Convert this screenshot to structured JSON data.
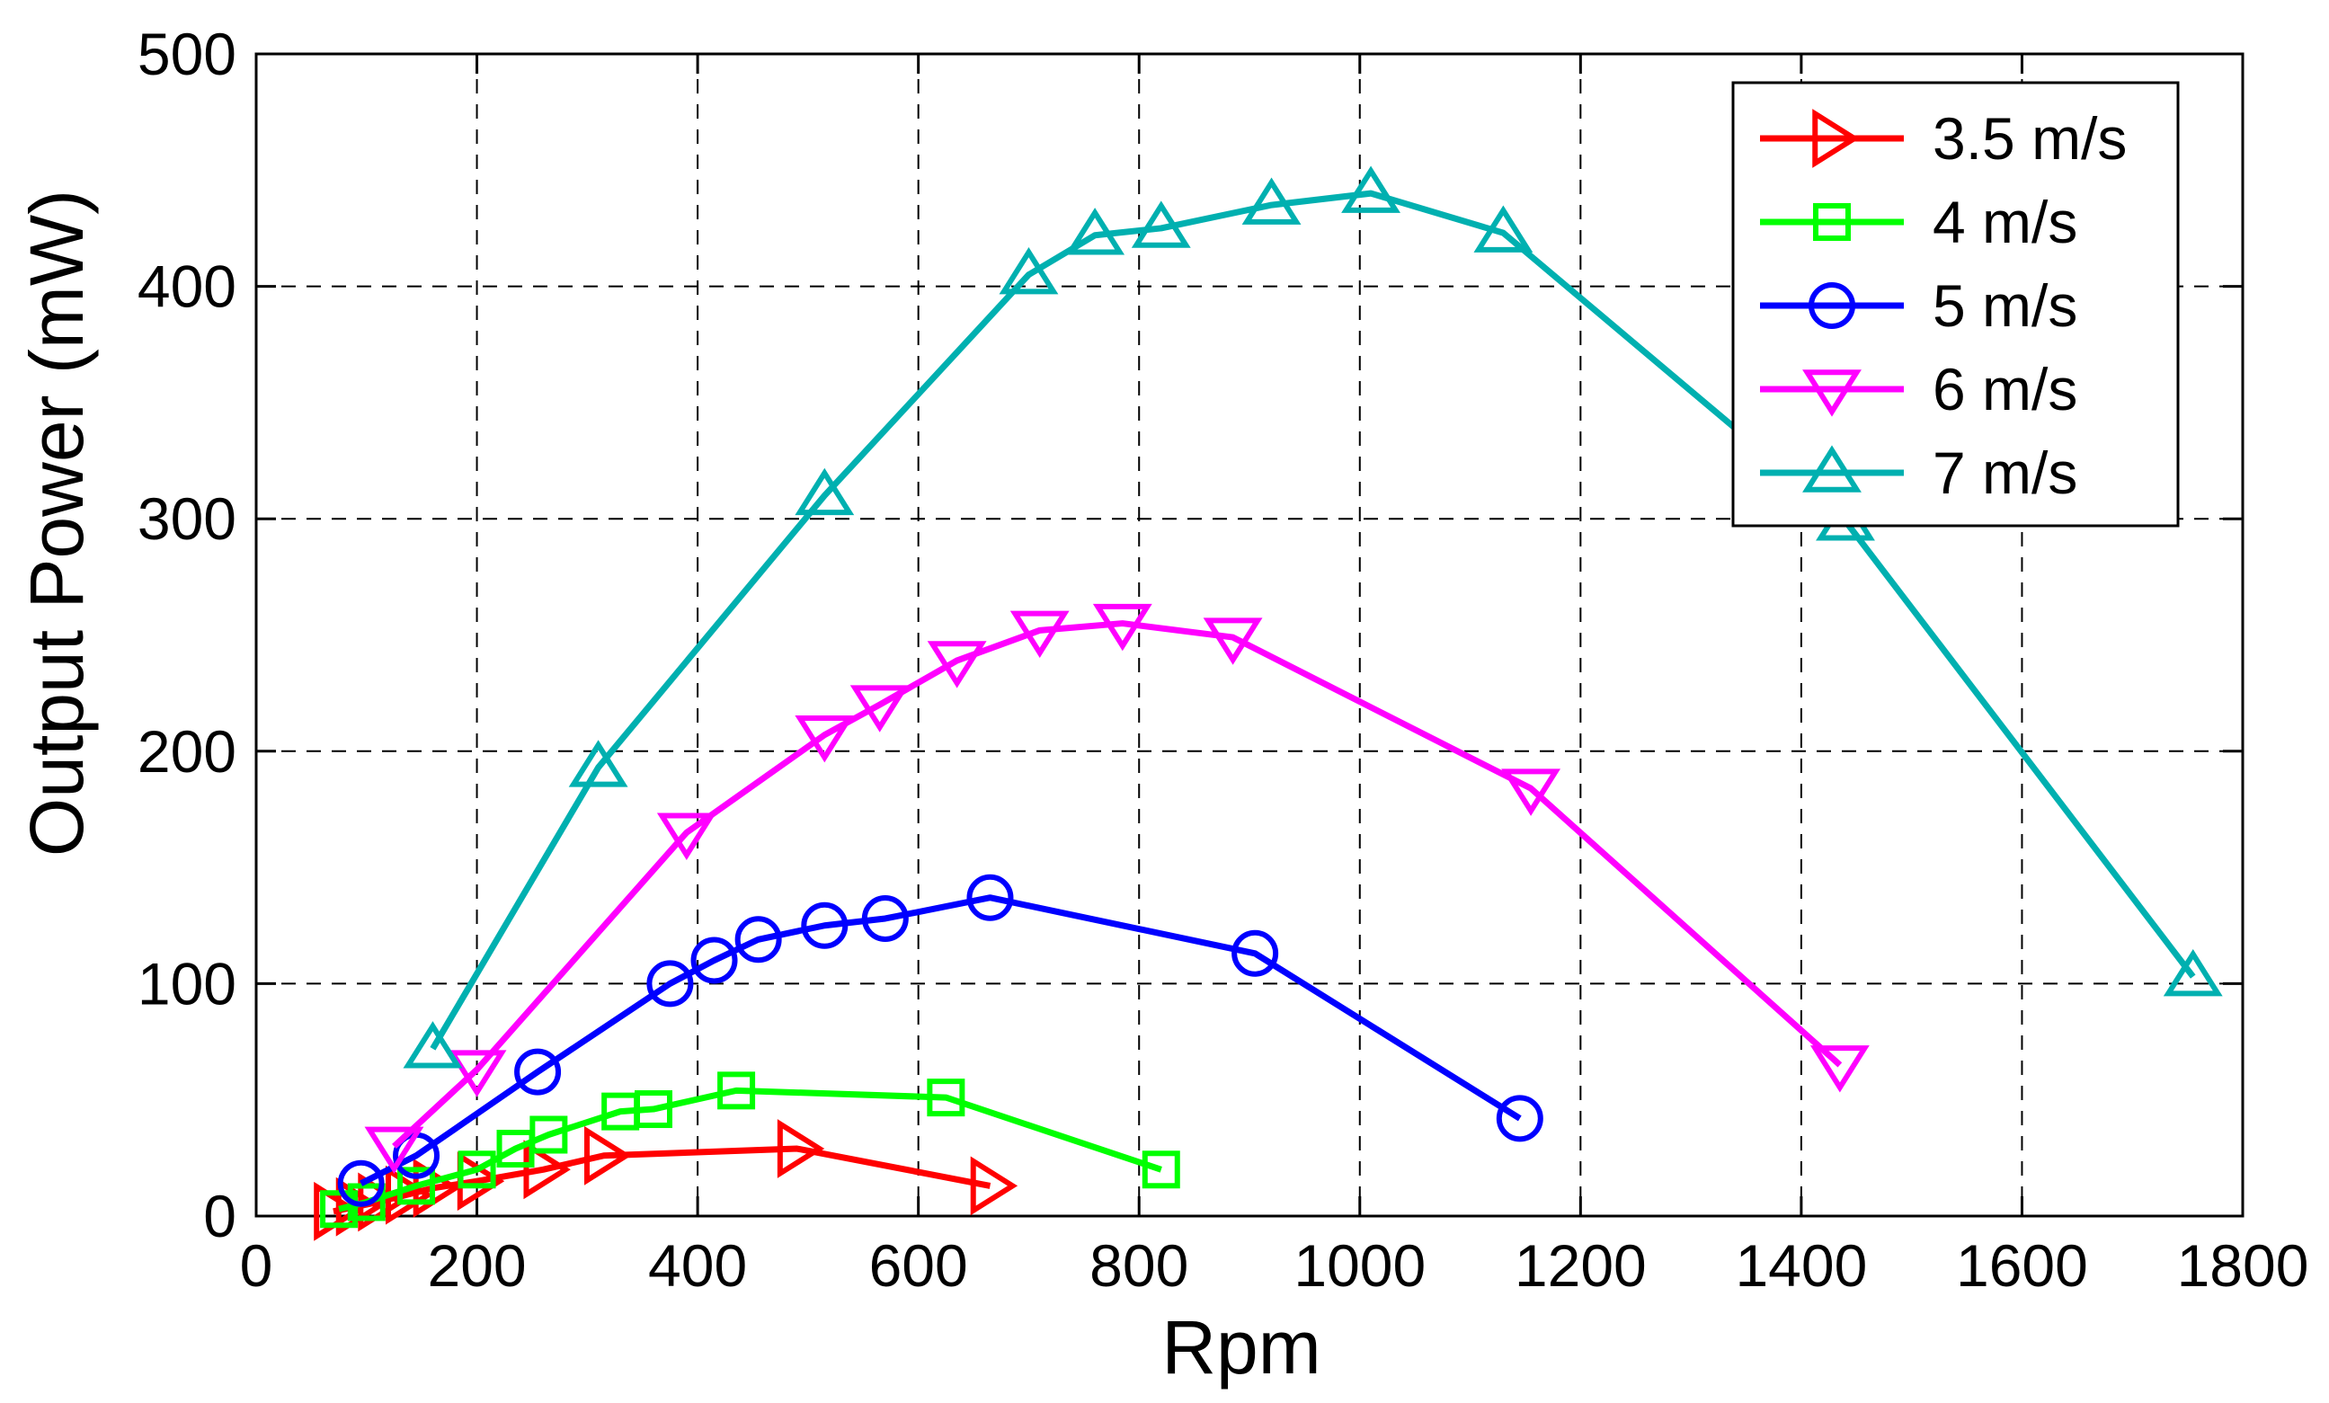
{
  "chart_data": {
    "type": "line",
    "title": "",
    "xlabel": "Rpm",
    "ylabel": "Output Power (mW)",
    "xlim": [
      0,
      1800
    ],
    "ylim": [
      0,
      500
    ],
    "xticks": [
      0,
      200,
      400,
      600,
      800,
      1000,
      1200,
      1400,
      1600,
      1800
    ],
    "yticks": [
      0,
      100,
      200,
      300,
      400,
      500
    ],
    "grid": true,
    "legend_position": "top-right",
    "series": [
      {
        "name": "3.5 m/s",
        "color": "#ff0000",
        "marker": "triangle-right",
        "x": [
          70,
          90,
          110,
          135,
          160,
          200,
          260,
          315,
          490,
          665
        ],
        "y": [
          2,
          4,
          6,
          9,
          12,
          15,
          20,
          26,
          29,
          13
        ]
      },
      {
        "name": "4 m/s",
        "color": "#00ff00",
        "marker": "square",
        "x": [
          75,
          100,
          145,
          200,
          235,
          265,
          330,
          360,
          435,
          625,
          820
        ],
        "y": [
          3,
          6,
          13,
          20,
          29,
          35,
          45,
          46,
          54,
          51,
          20
        ]
      },
      {
        "name": "5 m/s",
        "color": "#0000ff",
        "marker": "circle",
        "x": [
          95,
          145,
          255,
          375,
          415,
          455,
          515,
          570,
          665,
          905,
          1145
        ],
        "y": [
          14,
          26,
          62,
          100,
          110,
          119,
          125,
          128,
          137,
          113,
          42
        ]
      },
      {
        "name": "6 m/s",
        "color": "#ff00ff",
        "marker": "triangle-down",
        "x": [
          125,
          200,
          390,
          515,
          565,
          635,
          710,
          785,
          885,
          1155,
          1435
        ],
        "y": [
          30,
          63,
          165,
          207,
          220,
          239,
          252,
          255,
          249,
          184,
          65
        ]
      },
      {
        "name": "7 m/s",
        "color": "#00b0b0",
        "marker": "triangle-up",
        "x": [
          160,
          310,
          515,
          700,
          760,
          820,
          920,
          1010,
          1130,
          1440,
          1755
        ],
        "y": [
          72,
          193,
          310,
          405,
          422,
          425,
          435,
          440,
          423,
          299,
          103
        ]
      }
    ]
  }
}
